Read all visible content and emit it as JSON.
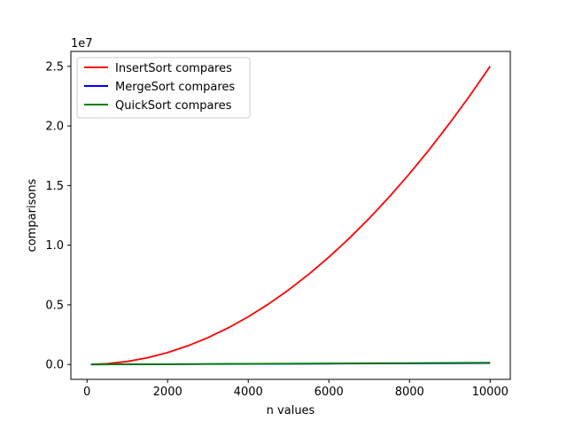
{
  "chart_data": {
    "type": "line",
    "title": "",
    "xlabel": "n values",
    "ylabel": "comparisons",
    "y_offset_label": "1e7",
    "xlim": [
      -400,
      10500
    ],
    "ylim": [
      -1250000,
      26250000
    ],
    "xticks": [
      0,
      2000,
      4000,
      6000,
      8000,
      10000
    ],
    "xtick_labels": [
      "0",
      "2000",
      "4000",
      "6000",
      "8000",
      "10000"
    ],
    "yticks": [
      0,
      5000000,
      10000000,
      15000000,
      20000000,
      25000000
    ],
    "ytick_labels": [
      "0.0",
      "0.5",
      "1.0",
      "1.5",
      "2.0",
      "2.5"
    ],
    "grid": false,
    "legend_position": "upper-left",
    "series": [
      {
        "name": "InsertSort compares",
        "color": "#ff0000",
        "x": [
          100,
          500,
          1000,
          1500,
          2000,
          2500,
          3000,
          3500,
          4000,
          4500,
          5000,
          5500,
          6000,
          6500,
          7000,
          7500,
          8000,
          8500,
          9000,
          9500,
          10000
        ],
        "y": [
          2500,
          62500,
          250000,
          562500,
          1000000,
          1562500,
          2250000,
          3062500,
          4000000,
          5062500,
          6250000,
          7562500,
          9000000,
          10562500,
          12250000,
          14062500,
          16000000,
          18062500,
          20250000,
          22562500,
          25000000
        ]
      },
      {
        "name": "MergeSort compares",
        "color": "#0000ff",
        "x": [
          100,
          1000,
          2000,
          3000,
          4000,
          5000,
          6000,
          7000,
          8000,
          9000,
          10000
        ],
        "y": [
          540,
          8700,
          19400,
          30600,
          42300,
          54300,
          66300,
          78500,
          90700,
          103100,
          115700
        ]
      },
      {
        "name": "QuickSort compares",
        "color": "#008000",
        "x": [
          100,
          1000,
          2000,
          3000,
          4000,
          5000,
          6000,
          7000,
          8000,
          9000,
          10000
        ],
        "y": [
          700,
          11000,
          25000,
          40000,
          55000,
          70000,
          85000,
          101000,
          117000,
          133000,
          150000
        ]
      }
    ]
  }
}
